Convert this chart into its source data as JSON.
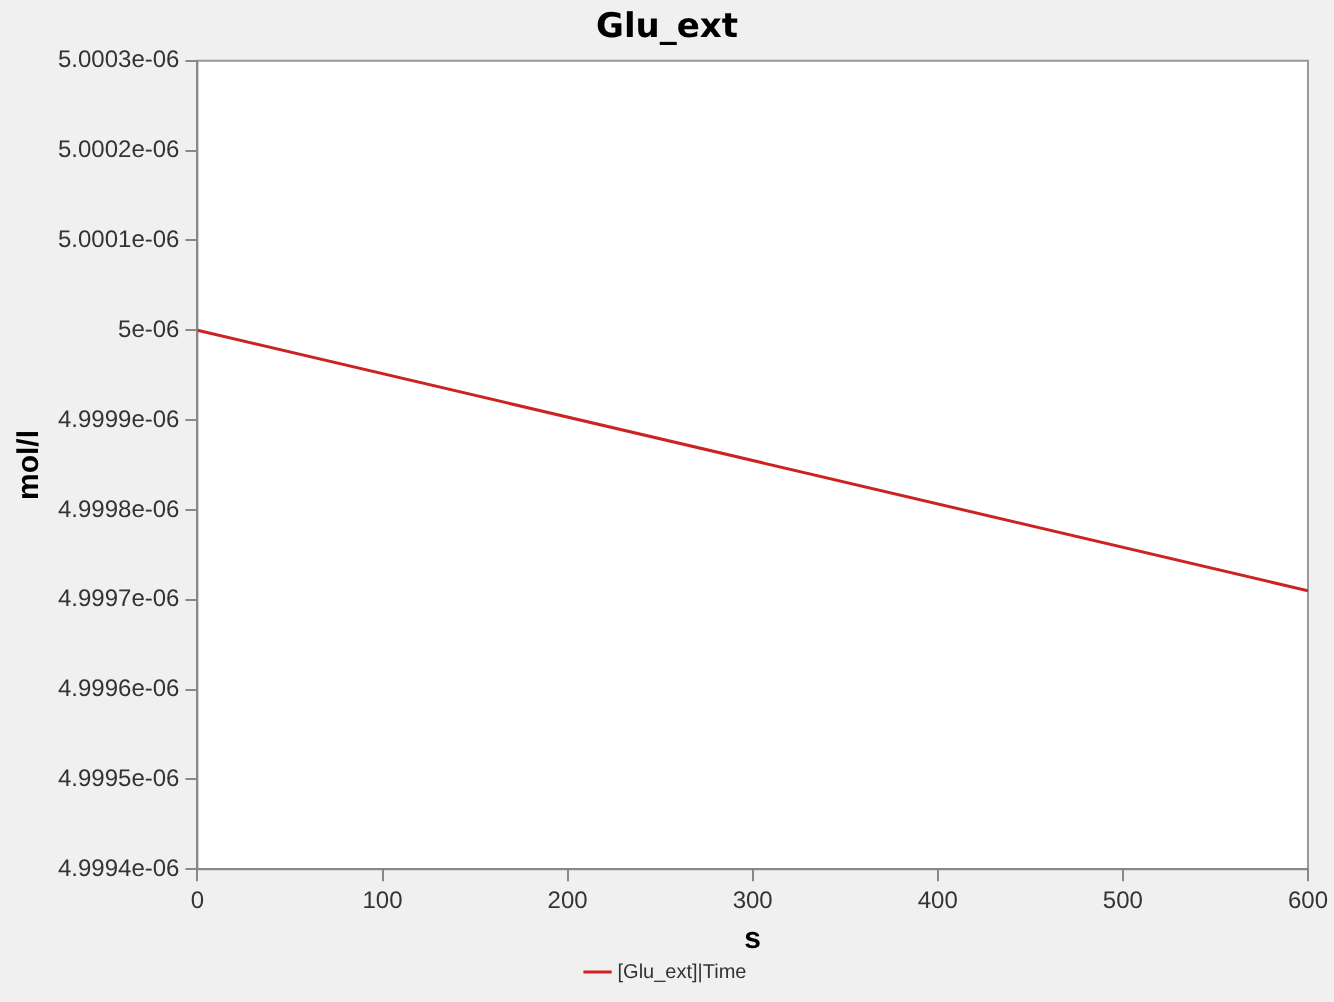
{
  "chart_data": {
    "type": "line",
    "title": "Glu_ext",
    "xlabel": "s",
    "ylabel": "mol/l",
    "x": [
      0,
      600
    ],
    "series": [
      {
        "name": "[Glu_ext]|Time",
        "color": "#cc2222",
        "values": [
          5e-06,
          4.99971e-06
        ]
      }
    ],
    "xlim": [
      0,
      600
    ],
    "xticks": [
      0,
      100,
      200,
      300,
      400,
      500,
      600
    ],
    "ylim": [
      4.9994e-06,
      5.0003e-06
    ],
    "yticks": [
      {
        "value": 4.9994e-06,
        "label": "4.9994e-06"
      },
      {
        "value": 4.9995e-06,
        "label": "4.9995e-06"
      },
      {
        "value": 4.9996e-06,
        "label": "4.9996e-06"
      },
      {
        "value": 4.9997e-06,
        "label": "4.9997e-06"
      },
      {
        "value": 4.9998e-06,
        "label": "4.9998e-06"
      },
      {
        "value": 4.9999e-06,
        "label": "4.9999e-06"
      },
      {
        "value": 5e-06,
        "label": "5e-06"
      },
      {
        "value": 5.0001e-06,
        "label": "5.0001e-06"
      },
      {
        "value": 5.0002e-06,
        "label": "5.0002e-06"
      },
      {
        "value": 5.0003e-06,
        "label": "5.0003e-06"
      }
    ],
    "grid": false,
    "legend": "bottom",
    "marker": "none",
    "line_style": "solid"
  }
}
